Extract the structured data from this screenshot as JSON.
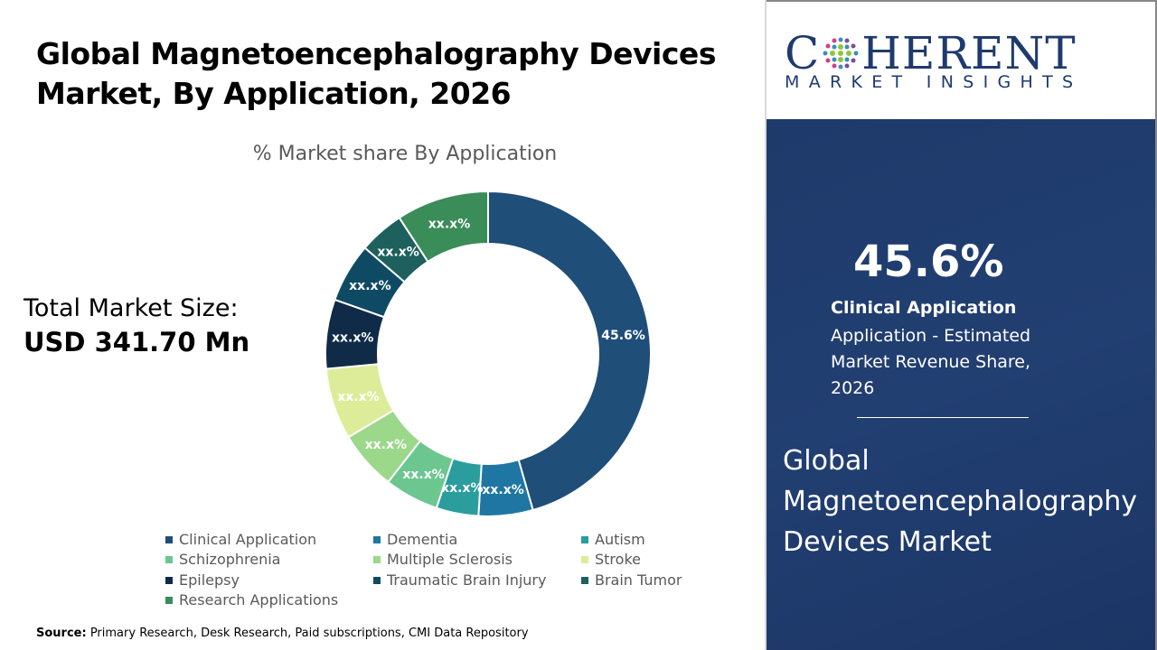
{
  "title_line1": "Global Magnetoencephalography Devices",
  "title_line2": "Market, By Application, 2026",
  "total_market": {
    "label": "Total Market Size:",
    "value": "USD 341.70 Mn"
  },
  "source": {
    "label": "Source:",
    "text": " Primary Research, Desk Research, Paid subscriptions, CMI Data Repository"
  },
  "logo": {
    "top": "COHERENT",
    "bottom": "MARKET INSIGHTS"
  },
  "highlight": {
    "value": "45.6%",
    "segment": "Clinical Application",
    "description": "Application - Estimated Market Revenue Share, 2026",
    "market_name": "Global Magnetoencephalography Devices Market"
  },
  "chart_data": {
    "type": "pie",
    "subtype": "donut",
    "title": "% Market share By Application",
    "legend_position": "bottom",
    "categories": [
      "Clinical Application",
      "Dementia",
      "Autism",
      "Schizophrenia",
      "Multiple Sclerosis",
      "Stroke",
      "Epilepsy",
      "Traumatic Brain Injury",
      "Brain Tumor",
      "Research Applications"
    ],
    "values": [
      45.6,
      5.4,
      4.2,
      5.4,
      5.9,
      7.1,
      6.9,
      5.9,
      4.5,
      9.2
    ],
    "data_labels": [
      "45.6%",
      "xx.x%",
      "xx.x%",
      "xx.x%",
      "xx.x%",
      "xx.x%",
      "xx.x%",
      "xx.x%",
      "xx.x%",
      "xx.x%"
    ],
    "colors": [
      "#1f4e79",
      "#1f76a3",
      "#2a9d9c",
      "#6cc68f",
      "#9bd88a",
      "#dcec98",
      "#0f2b48",
      "#0f4a64",
      "#1d605e",
      "#3a8c58"
    ]
  }
}
